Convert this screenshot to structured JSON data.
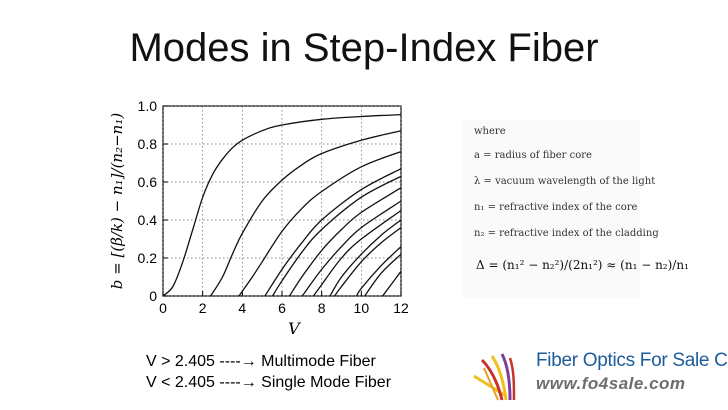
{
  "title": "Modes in Step-Index Fiber",
  "chart_data": {
    "type": "line",
    "xlabel": "V",
    "ylabel": "b = [(β/k) − n₁]/(n₂−n₁)",
    "x_ticks": [
      "0",
      "2",
      "4",
      "6",
      "8",
      "10",
      "12"
    ],
    "y_ticks": [
      "0",
      "0.2",
      "0.4",
      "0.6",
      "0.8",
      "1.0"
    ],
    "xlim": [
      0,
      12
    ],
    "ylim": [
      0,
      1.0
    ],
    "grid": true,
    "series": [
      {
        "cutoff": 0.0,
        "x": [
          0,
          0.5,
          1,
          1.5,
          2,
          2.5,
          3,
          3.5,
          4,
          5,
          6,
          8,
          10,
          12
        ],
        "y": [
          0,
          0.05,
          0.18,
          0.35,
          0.52,
          0.64,
          0.72,
          0.78,
          0.82,
          0.87,
          0.9,
          0.93,
          0.945,
          0.955
        ]
      },
      {
        "cutoff": 2.405,
        "x": [
          2.4,
          3,
          3.5,
          4,
          5,
          6,
          7,
          8,
          10,
          12
        ],
        "y": [
          0,
          0.1,
          0.22,
          0.33,
          0.5,
          0.61,
          0.69,
          0.75,
          0.82,
          0.87
        ]
      },
      {
        "cutoff": 3.832,
        "x": [
          3.83,
          4.5,
          5,
          6,
          7,
          8,
          10,
          12
        ],
        "y": [
          0,
          0.1,
          0.18,
          0.34,
          0.46,
          0.55,
          0.68,
          0.76
        ]
      },
      {
        "cutoff": 5.136,
        "x": [
          5.14,
          6,
          7,
          8,
          10,
          12
        ],
        "y": [
          0,
          0.14,
          0.28,
          0.4,
          0.56,
          0.67
        ]
      },
      {
        "cutoff": 5.52,
        "x": [
          5.52,
          6,
          7,
          8,
          10,
          12
        ],
        "y": [
          0,
          0.08,
          0.23,
          0.35,
          0.52,
          0.63
        ]
      },
      {
        "cutoff": 6.38,
        "x": [
          6.38,
          7,
          8,
          9,
          10,
          12
        ],
        "y": [
          0,
          0.1,
          0.24,
          0.35,
          0.44,
          0.57
        ]
      },
      {
        "cutoff": 7.016,
        "x": [
          7.02,
          8,
          9,
          10,
          12
        ],
        "y": [
          0,
          0.14,
          0.26,
          0.36,
          0.5
        ]
      },
      {
        "cutoff": 7.588,
        "x": [
          7.59,
          8,
          9,
          10,
          12
        ],
        "y": [
          0,
          0.06,
          0.2,
          0.3,
          0.45
        ]
      },
      {
        "cutoff": 8.417,
        "x": [
          8.42,
          9,
          10,
          11,
          12
        ],
        "y": [
          0,
          0.1,
          0.22,
          0.32,
          0.4
        ]
      },
      {
        "cutoff": 8.654,
        "x": [
          8.65,
          9,
          10,
          11,
          12
        ],
        "y": [
          0,
          0.05,
          0.18,
          0.28,
          0.36
        ]
      },
      {
        "cutoff": 9.761,
        "x": [
          9.76,
          10,
          11,
          12
        ],
        "y": [
          0,
          0.04,
          0.16,
          0.26
        ]
      },
      {
        "cutoff": 10.173,
        "x": [
          10.17,
          11,
          12
        ],
        "y": [
          0,
          0.12,
          0.22
        ]
      },
      {
        "cutoff": 11.065,
        "x": [
          11.07,
          11.5,
          12
        ],
        "y": [
          0,
          0.06,
          0.13
        ]
      }
    ]
  },
  "legend": {
    "where": "where",
    "a": "a = radius of fiber core",
    "lambda": "λ = vacuum wavelength of the light",
    "n1": "n₁ = refractive index of the core",
    "n2": "n₂ = refractive index of the cladding",
    "formula": "Δ = (n₁² − n₂²)/(2n₁²) ≈ (n₁ − n₂)/n₁"
  },
  "notes": [
    {
      "cond": "V > 2.405",
      "arrow": "----→",
      "label": "Multimode Fiber"
    },
    {
      "cond": "V < 2.405",
      "arrow": "----→",
      "label": "Single Mode Fiber"
    }
  ],
  "brand": {
    "name": "Fiber Optics For Sale Co.",
    "url": "www.fo4sale.com",
    "colors": {
      "blue": "#1d5c9a",
      "gray": "#6d6d6d",
      "yellow": "#f0c020",
      "red": "#c8312c",
      "purple": "#7a3f9a"
    }
  }
}
